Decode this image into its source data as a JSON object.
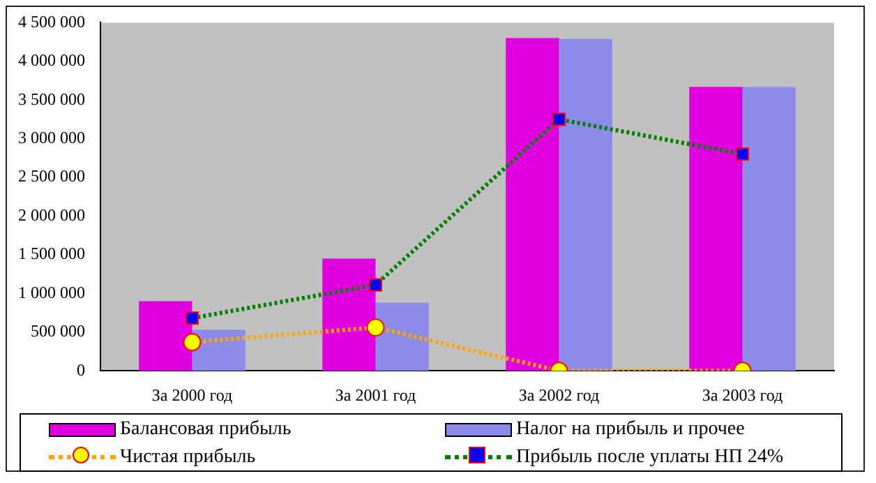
{
  "chart_data": {
    "type": "bar",
    "categories": [
      "За 2000 год",
      "За 2001 год",
      "За 2002 год",
      "За 2003 год"
    ],
    "series": [
      {
        "name": "Балансовая прибыль",
        "color": "#e000e0",
        "values": [
          900000,
          1450000,
          4300000,
          3670000
        ]
      },
      {
        "name": "Налог на прибыль и прочее",
        "color": "#8c8ce8",
        "values": [
          530000,
          880000,
          4290000,
          3670000
        ]
      },
      {
        "name": "Чистая прибыль",
        "type": "line",
        "color": "#ffa500",
        "marker": "circle",
        "line_style": "dotted",
        "values": [
          370000,
          560000,
          0,
          0
        ]
      },
      {
        "name": "Прибыль после уплаты НП 24%",
        "type": "line",
        "color": "#008000",
        "marker": "square",
        "line_style": "dotted",
        "values": [
          680000,
          1110000,
          3250000,
          2800000
        ]
      }
    ],
    "ylim": [
      0,
      4500000
    ],
    "yticks": [
      0,
      500000,
      1000000,
      1500000,
      2000000,
      2500000,
      3000000,
      3500000,
      4000000,
      4500000
    ],
    "grid": false,
    "legend": "bottom"
  }
}
